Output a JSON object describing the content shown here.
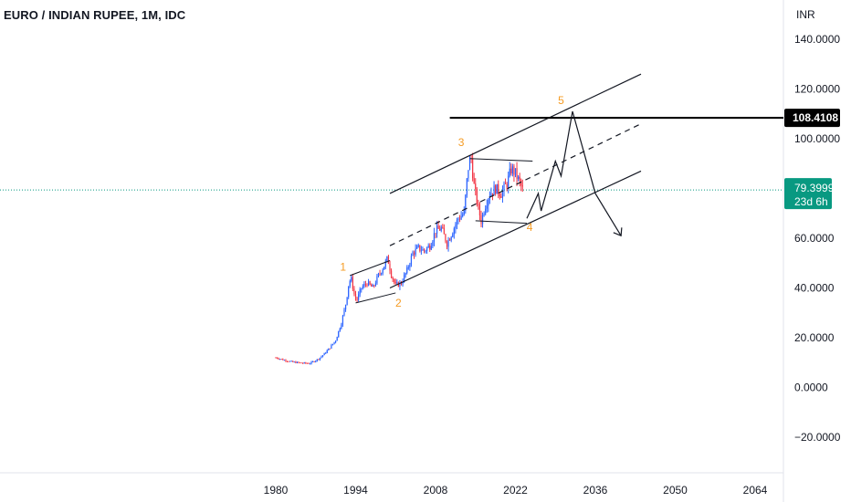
{
  "chart_data": {
    "type": "candlestick",
    "title": "EURO / INDIAN RUPEE, 1M, IDC",
    "currency_label": "INR",
    "x_ticks": [
      "1980",
      "1994",
      "2008",
      "2022",
      "2036",
      "2050",
      "2064"
    ],
    "y_ticks": [
      "140.0000",
      "120.0000",
      "100.0000",
      "60.0000",
      "40.0000",
      "20.0000",
      "0.0000",
      "−20.0000"
    ],
    "ylim": [
      -20,
      140
    ],
    "xlim": [
      1980,
      2064
    ],
    "last_price": {
      "value": 79.3999,
      "label": "79.3999",
      "countdown": "23d 6h",
      "color": "#089981"
    },
    "level_line": {
      "value": 108.4108,
      "label": "108.4108",
      "color": "#000000"
    },
    "up_color": "#2962ff",
    "down_color": "#f23645",
    "price_path": [
      [
        1980.0,
        12.0
      ],
      [
        1981.5,
        11.0
      ],
      [
        1983.0,
        10.2
      ],
      [
        1984.5,
        9.8
      ],
      [
        1986.0,
        9.7
      ],
      [
        1987.5,
        11.5
      ],
      [
        1988.5,
        13.5
      ],
      [
        1989.5,
        16.0
      ],
      [
        1990.5,
        19.0
      ],
      [
        1991.5,
        26.0
      ],
      [
        1992.3,
        34.0
      ],
      [
        1992.8,
        42.0
      ],
      [
        1993.2,
        44.0
      ],
      [
        1993.8,
        37.0
      ],
      [
        1994.2,
        35.0
      ],
      [
        1995.0,
        40.0
      ],
      [
        1996.0,
        42.0
      ],
      [
        1997.0,
        40.0
      ],
      [
        1998.0,
        45.0
      ],
      [
        1999.0,
        49.0
      ],
      [
        1999.6,
        52.0
      ],
      [
        2000.3,
        45.0
      ],
      [
        2001.0,
        41.0
      ],
      [
        2002.0,
        42.0
      ],
      [
        2003.0,
        47.0
      ],
      [
        2004.0,
        54.0
      ],
      [
        2005.0,
        56.0
      ],
      [
        2006.0,
        55.0
      ],
      [
        2007.0,
        57.0
      ],
      [
        2008.0,
        63.0
      ],
      [
        2009.0,
        64.0
      ],
      [
        2010.0,
        58.0
      ],
      [
        2011.0,
        63.0
      ],
      [
        2012.0,
        68.0
      ],
      [
        2013.0,
        70.0
      ],
      [
        2013.7,
        88.0
      ],
      [
        2014.2,
        93.0
      ],
      [
        2014.8,
        80.0
      ],
      [
        2015.5,
        72.0
      ],
      [
        2016.0,
        67.0
      ],
      [
        2016.8,
        74.0
      ],
      [
        2017.5,
        78.0
      ],
      [
        2018.5,
        80.0
      ],
      [
        2019.5,
        78.0
      ],
      [
        2020.5,
        82.0
      ],
      [
        2021.3,
        88.0
      ],
      [
        2022.0,
        86.0
      ],
      [
        2022.8,
        82.0
      ],
      [
        2023.3,
        79.4
      ]
    ],
    "channel": {
      "upper": [
        [
          2000.0,
          78.0
        ],
        [
          2044.0,
          126.0
        ]
      ],
      "mid": [
        [
          2000.0,
          57.0
        ],
        [
          2044.0,
          106.0
        ]
      ],
      "lower": [
        [
          2000.0,
          40.0
        ],
        [
          2044.0,
          87.0
        ]
      ]
    },
    "patterns": {
      "triangle_upper": [
        [
          1993.0,
          45.0
        ],
        [
          2000.0,
          51.0
        ]
      ],
      "triangle_lower": [
        [
          1994.0,
          34.0
        ],
        [
          2001.0,
          38.0
        ]
      ],
      "flag_upper": [
        [
          2014.0,
          92.0
        ],
        [
          2025.0,
          91.0
        ]
      ],
      "flag_lower": [
        [
          2015.0,
          67.0
        ],
        [
          2024.0,
          66.0
        ]
      ]
    },
    "projection": [
      [
        2024.0,
        68.0
      ],
      [
        2026.0,
        78.0
      ],
      [
        2026.5,
        71.0
      ],
      [
        2029.0,
        91.0
      ],
      [
        2030.0,
        85.0
      ],
      [
        2032.0,
        111.0
      ],
      [
        2036.0,
        78.0
      ],
      [
        2040.5,
        61.0
      ]
    ],
    "wave_labels": [
      {
        "text": "1",
        "x": 1991.8,
        "y": 47.0
      },
      {
        "text": "2",
        "x": 2001.5,
        "y": 32.5
      },
      {
        "text": "3",
        "x": 2012.5,
        "y": 97.0
      },
      {
        "text": "4",
        "x": 2024.5,
        "y": 63.0
      },
      {
        "text": "5",
        "x": 2030.0,
        "y": 114.0
      }
    ]
  }
}
